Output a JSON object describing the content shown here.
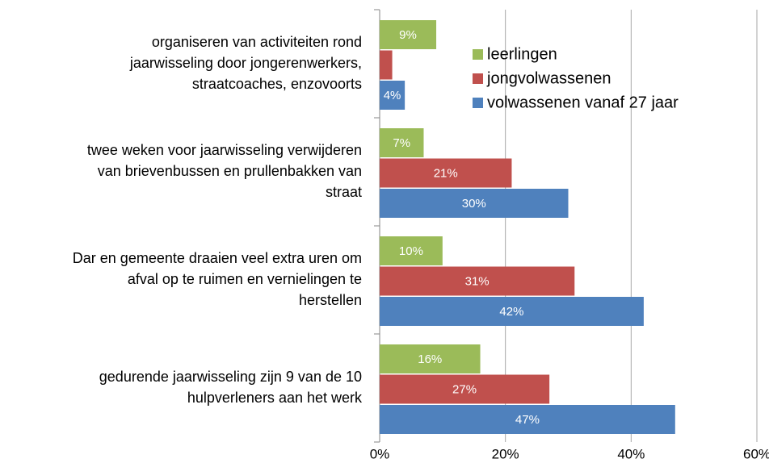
{
  "chart_data": {
    "type": "bar",
    "orientation": "horizontal",
    "categories": [
      [
        "organiseren van activiteiten rond",
        "jaarwisseling door jongerenwerkers,",
        "straatcoaches, enzovoorts"
      ],
      [
        "twee weken voor jaarwisseling verwijderen",
        "van brievenbussen en prullenbakken van",
        "straat"
      ],
      [
        "Dar en gemeente draaien veel extra uren om",
        "afval op te ruimen en vernielingen te",
        "herstellen"
      ],
      [
        "gedurende jaarwisseling zijn 9 van de 10",
        "hulpverleners aan het werk"
      ]
    ],
    "series": [
      {
        "name": "leerlingen",
        "color": "#9bbb59",
        "values": [
          9,
          7,
          10,
          16
        ],
        "value_labels": [
          "9%",
          "7%",
          "10%",
          "16%"
        ]
      },
      {
        "name": "jongvolwassenen",
        "color": "#c0504d",
        "values": [
          2,
          21,
          31,
          27
        ],
        "value_labels": [
          null,
          "21%",
          "31%",
          "27%"
        ]
      },
      {
        "name": "volwassenen vanaf 27 jaar",
        "color": "#4f81bd",
        "values": [
          4,
          30,
          42,
          47
        ],
        "value_labels": [
          "4%",
          "30%",
          "42%",
          "47%"
        ]
      }
    ],
    "xlim": [
      0,
      60
    ],
    "xticks": [
      {
        "value": 0,
        "label": "0%"
      },
      {
        "value": 20,
        "label": "20%"
      },
      {
        "value": 40,
        "label": "40%"
      },
      {
        "value": 60,
        "label": "60%"
      }
    ],
    "grid": true,
    "legend": "top-right"
  }
}
